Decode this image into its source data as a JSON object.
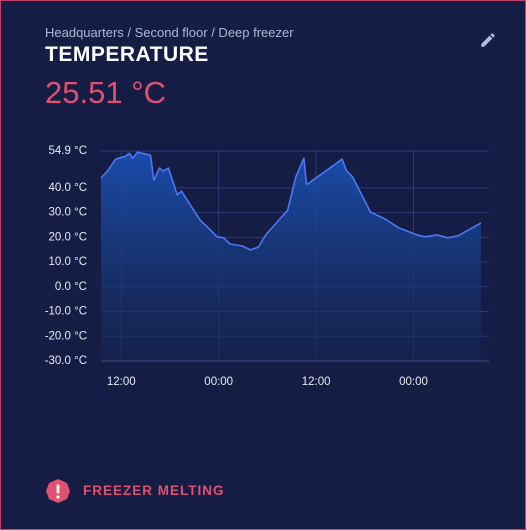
{
  "breadcrumb": "Headquarters / Second floor / Deep freezer",
  "title": "TEMPERATURE",
  "reading": "25.51 °C",
  "alert": "FREEZER MELTING",
  "chart_data": {
    "type": "area",
    "x": [
      9.5,
      10.3,
      11.3,
      12.5,
      13,
      13.4,
      14,
      15.6,
      16,
      16.7,
      17.2,
      17.8,
      18.9,
      19.4,
      21.7,
      22.6,
      23.8,
      24.6,
      25.4,
      26.9,
      27.9,
      28.9,
      29.8,
      32.5,
      33.5,
      34.5,
      34.8,
      35.1,
      39.2,
      39.7,
      40.5,
      42.7,
      44.5,
      46.2,
      48.4,
      49.4,
      50.9,
      52.2,
      53.5,
      56.3
    ],
    "series": [
      {
        "color": "#4b78f5",
        "values": [
          44,
          46.8,
          51.6,
          52.8,
          54,
          52,
          54.4,
          53.2,
          43.1,
          48,
          46.8,
          48,
          37.1,
          38.7,
          27,
          24.2,
          20.2,
          19.8,
          17.3,
          16.5,
          14.9,
          16.1,
          21,
          31,
          44.4,
          52,
          41.5,
          41.9,
          51.6,
          47.2,
          44.4,
          30.2,
          27.4,
          23.8,
          21,
          20.2,
          21,
          19.8,
          20.6,
          25.8
        ]
      }
    ],
    "xlim": [
      9.5,
      57.3
    ],
    "xticks": [
      {
        "value": 12,
        "label": "12:00"
      },
      {
        "value": 24,
        "label": "00:00"
      },
      {
        "value": 36,
        "label": "12:00"
      },
      {
        "value": 48,
        "label": "00:00"
      }
    ],
    "ylim": [
      -30,
      54.9
    ],
    "yticks": [
      {
        "value": 54.9,
        "label": "54.9 °C"
      },
      {
        "value": 40,
        "label": "40.0 °C"
      },
      {
        "value": 30,
        "label": "30.0 °C"
      },
      {
        "value": 20,
        "label": "20.0 °C"
      },
      {
        "value": 10,
        "label": "10.0 °C"
      },
      {
        "value": 0,
        "label": "0.0 °C"
      },
      {
        "value": -10,
        "label": "-10.0 °C"
      },
      {
        "value": -20,
        "label": "-20.0 °C"
      },
      {
        "value": -30,
        "label": "-30.0 °C"
      }
    ],
    "grid": true
  }
}
